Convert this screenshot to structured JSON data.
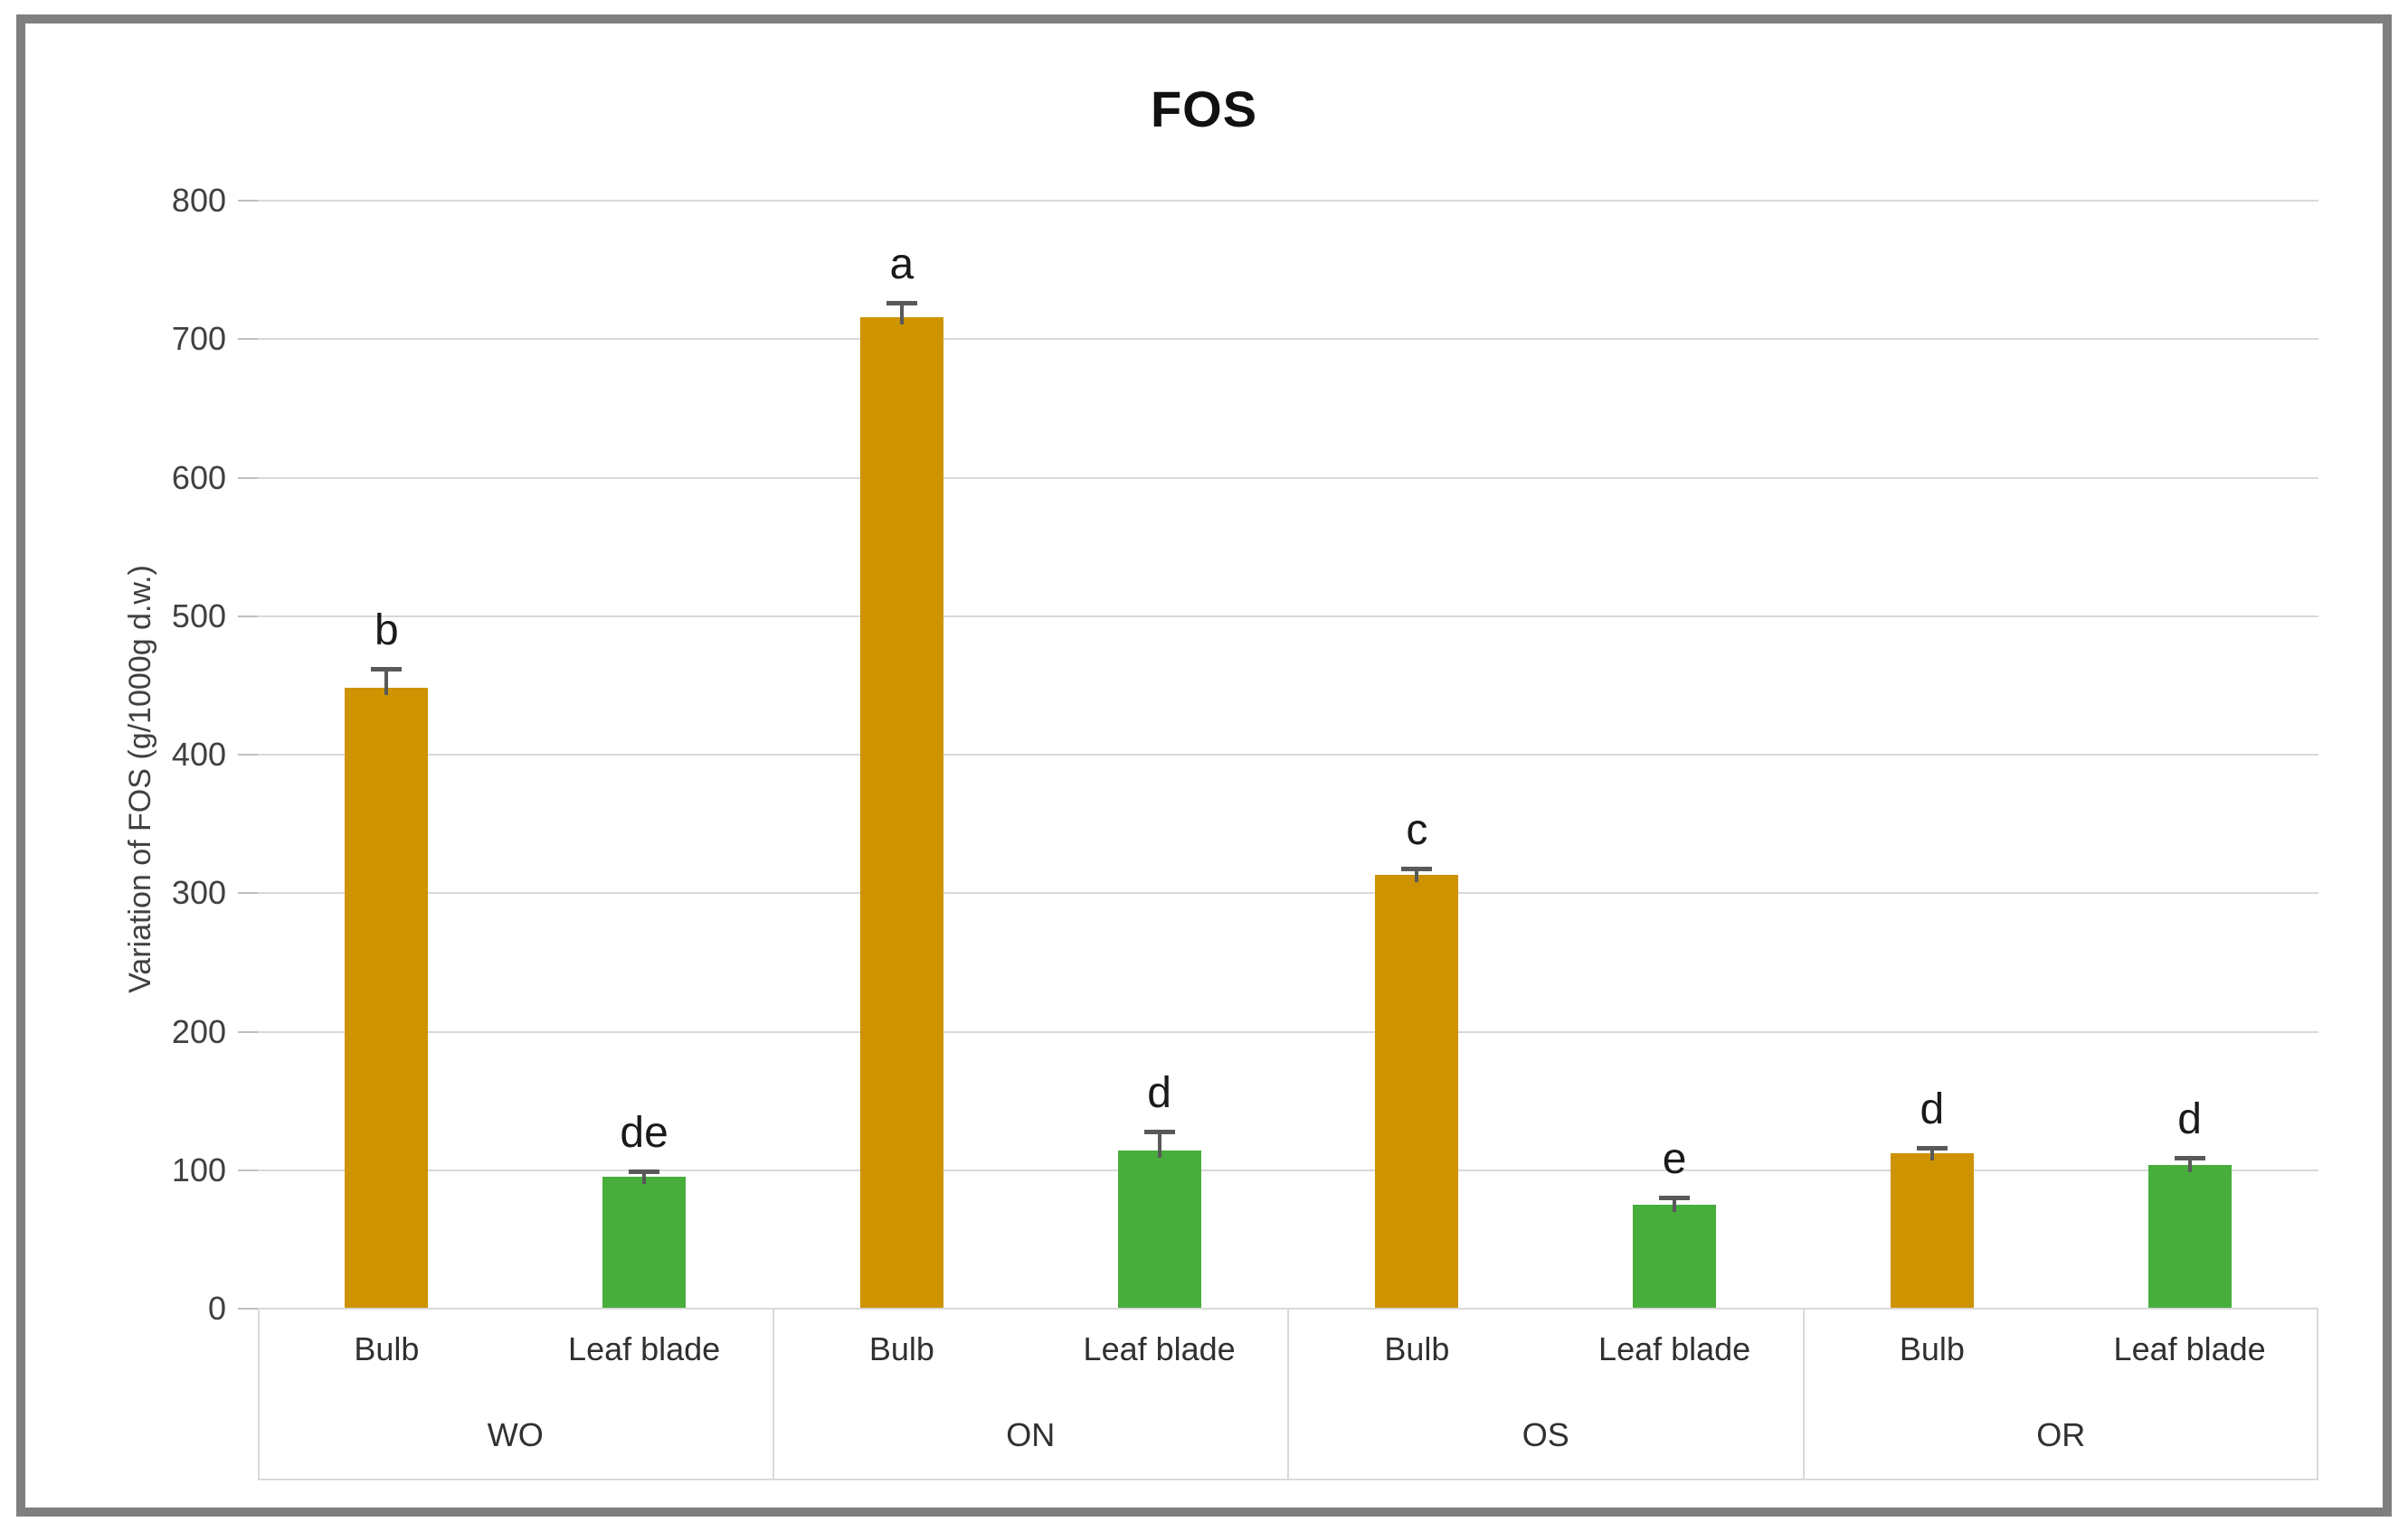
{
  "chart_data": {
    "type": "bar",
    "title": "FOS",
    "ylabel": "Variation of FOS (g/1000g d.w.)",
    "xlabel": "",
    "ylim": [
      0,
      800
    ],
    "ytick_step": 100,
    "yticks": [
      800,
      700,
      600,
      500,
      400,
      300,
      200,
      100,
      0
    ],
    "grid": true,
    "legend": "none",
    "groups": [
      "WO",
      "ON",
      "OS",
      "OR"
    ],
    "subcategories": [
      "Bulb",
      "Leaf blade"
    ],
    "series": [
      {
        "name": "Bulb",
        "color": "#ce9301",
        "values": [
          448,
          716,
          313,
          112
        ],
        "errors": [
          14,
          10,
          5,
          4
        ],
        "letters": [
          "b",
          "a",
          "c",
          "d"
        ]
      },
      {
        "name": "Leaf blade",
        "color": "#47ae3c",
        "values": [
          95,
          114,
          75,
          104
        ],
        "errors": [
          4,
          14,
          5,
          5
        ],
        "letters": [
          "de",
          "d",
          "e",
          "d"
        ]
      }
    ]
  },
  "colors": {
    "frame_border": "#7f7f7f",
    "gridline": "#d9d9d9",
    "error_bar": "#595959",
    "axis_text": "#404040",
    "title_text": "#111111",
    "background": "#ffffff"
  }
}
